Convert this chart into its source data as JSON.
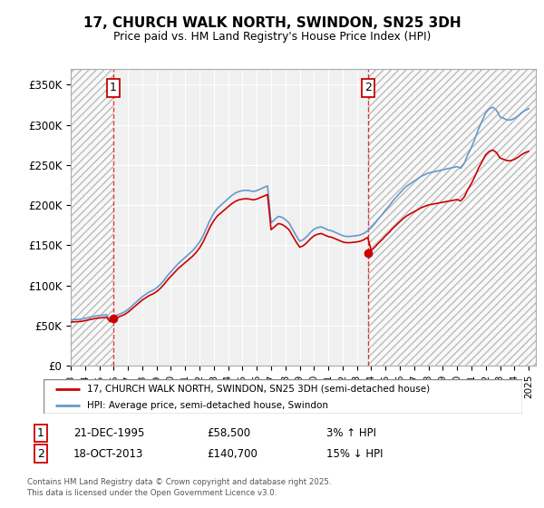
{
  "title": "17, CHURCH WALK NORTH, SWINDON, SN25 3DH",
  "subtitle": "Price paid vs. HM Land Registry's House Price Index (HPI)",
  "ylim": [
    0,
    370000
  ],
  "yticks": [
    0,
    50000,
    100000,
    150000,
    200000,
    250000,
    300000,
    350000
  ],
  "ytick_labels": [
    "£0",
    "£50K",
    "£100K",
    "£150K",
    "£200K",
    "£250K",
    "£300K",
    "£350K"
  ],
  "plot_bg_color": "#f0f0f0",
  "legend_entries": [
    "17, CHURCH WALK NORTH, SWINDON, SN25 3DH (semi-detached house)",
    "HPI: Average price, semi-detached house, Swindon"
  ],
  "line1_color": "#cc0000",
  "line2_color": "#6699cc",
  "annotation1_date": "21-DEC-1995",
  "annotation1_price": 58500,
  "annotation1_hpi": "3% ↑ HPI",
  "annotation2_date": "18-OCT-2013",
  "annotation2_price": 140700,
  "annotation2_hpi": "15% ↓ HPI",
  "vline1_x": 1995.97,
  "vline2_x": 2013.79,
  "footer": "Contains HM Land Registry data © Crown copyright and database right 2025.\nThis data is licensed under the Open Government Licence v3.0.",
  "hpi_dates": [
    1993.0,
    1993.25,
    1993.5,
    1993.75,
    1994.0,
    1994.25,
    1994.5,
    1994.75,
    1995.0,
    1995.25,
    1995.5,
    1995.75,
    1996.0,
    1996.25,
    1996.5,
    1996.75,
    1997.0,
    1997.25,
    1997.5,
    1997.75,
    1998.0,
    1998.25,
    1998.5,
    1998.75,
    1999.0,
    1999.25,
    1999.5,
    1999.75,
    2000.0,
    2000.25,
    2000.5,
    2000.75,
    2001.0,
    2001.25,
    2001.5,
    2001.75,
    2002.0,
    2002.25,
    2002.5,
    2002.75,
    2003.0,
    2003.25,
    2003.5,
    2003.75,
    2004.0,
    2004.25,
    2004.5,
    2004.75,
    2005.0,
    2005.25,
    2005.5,
    2005.75,
    2006.0,
    2006.25,
    2006.5,
    2006.75,
    2007.0,
    2007.25,
    2007.5,
    2007.75,
    2008.0,
    2008.25,
    2008.5,
    2008.75,
    2009.0,
    2009.25,
    2009.5,
    2009.75,
    2010.0,
    2010.25,
    2010.5,
    2010.75,
    2011.0,
    2011.25,
    2011.5,
    2011.75,
    2012.0,
    2012.25,
    2012.5,
    2012.75,
    2013.0,
    2013.25,
    2013.5,
    2013.75,
    2014.0,
    2014.25,
    2014.5,
    2014.75,
    2015.0,
    2015.25,
    2015.5,
    2015.75,
    2016.0,
    2016.25,
    2016.5,
    2016.75,
    2017.0,
    2017.25,
    2017.5,
    2017.75,
    2018.0,
    2018.25,
    2018.5,
    2018.75,
    2019.0,
    2019.25,
    2019.5,
    2019.75,
    2020.0,
    2020.25,
    2020.5,
    2020.75,
    2021.0,
    2021.25,
    2021.5,
    2021.75,
    2022.0,
    2022.25,
    2022.5,
    2022.75,
    2023.0,
    2023.25,
    2023.5,
    2023.75,
    2024.0,
    2024.25,
    2024.5,
    2024.75,
    2025.0
  ],
  "hpi_values": [
    57000,
    57500,
    57800,
    58000,
    59000,
    60000,
    61000,
    62000,
    62500,
    63000,
    63500,
    57500,
    62000,
    63000,
    65000,
    67000,
    70000,
    74000,
    78000,
    82000,
    86000,
    89000,
    92000,
    94000,
    97000,
    101000,
    106000,
    112000,
    117000,
    122000,
    127000,
    131000,
    135000,
    139000,
    143000,
    148000,
    154000,
    162000,
    172000,
    182000,
    190000,
    196000,
    200000,
    204000,
    208000,
    212000,
    215000,
    217000,
    218000,
    218500,
    218000,
    217000,
    218000,
    220000,
    222000,
    224000,
    178000,
    182000,
    186000,
    185000,
    182000,
    178000,
    170000,
    162000,
    155000,
    157000,
    161000,
    166000,
    170000,
    172000,
    173000,
    171000,
    169000,
    168000,
    166000,
    164000,
    162000,
    161000,
    161000,
    161500,
    162000,
    163000,
    165000,
    168000,
    172000,
    177000,
    183000,
    188000,
    194000,
    199000,
    205000,
    210000,
    215000,
    220000,
    224000,
    227000,
    230000,
    233000,
    236000,
    238000,
    240000,
    241000,
    242000,
    243000,
    244000,
    245000,
    246000,
    247000,
    248000,
    246000,
    252000,
    263000,
    272000,
    283000,
    295000,
    305000,
    315000,
    320000,
    322000,
    318000,
    310000,
    308000,
    306000,
    306000,
    308000,
    311000,
    315000,
    318000,
    320000
  ],
  "sale1_x": 1995.97,
  "sale1_y": 58500,
  "sale2_x": 2013.79,
  "sale2_y": 140700,
  "xlim_left": 1993.0,
  "xlim_right": 2025.5,
  "xtick_years": [
    1993,
    1994,
    1995,
    1996,
    1997,
    1998,
    1999,
    2000,
    2001,
    2002,
    2003,
    2004,
    2005,
    2006,
    2007,
    2008,
    2009,
    2010,
    2011,
    2012,
    2013,
    2014,
    2015,
    2016,
    2017,
    2018,
    2019,
    2020,
    2021,
    2022,
    2023,
    2024,
    2025
  ]
}
